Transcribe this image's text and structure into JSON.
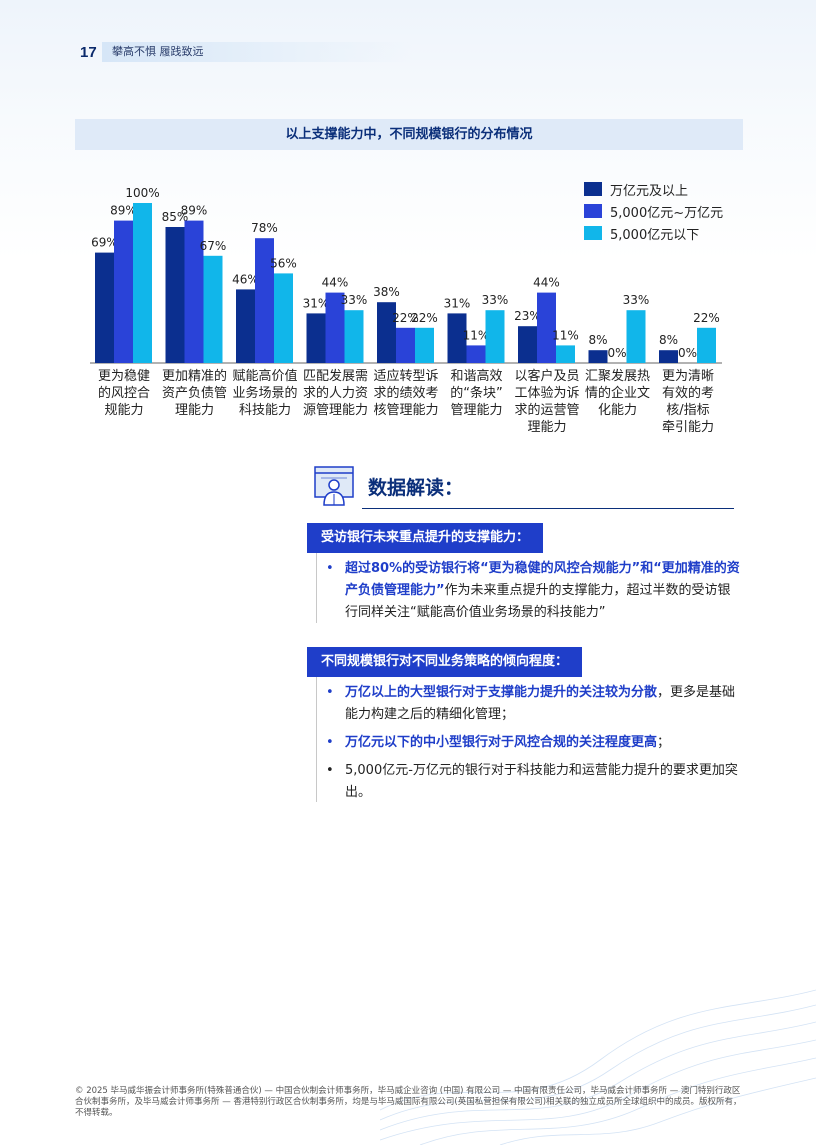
{
  "header": {
    "page_number": "17",
    "tagline": "攀高不惧 履践致远"
  },
  "chart_data": {
    "type": "bar",
    "title": "以上支撑能力中，不同规模银行的分布情况",
    "categories": [
      "更为稳健的风控合规能力",
      "更加精准的资产负债管理能力",
      "赋能高价值业务场景的科技能力",
      "匹配发展需求的人力资源管理能力",
      "适应转型诉求的绩效考核管理能力",
      "和谐高效的“条块”管理能力",
      "以客户及员工体验为诉求的运营管理能力",
      "汇聚发展热情的企业文化能力",
      "更为清晰有效的考核/指标牵引能力"
    ],
    "category_lines": [
      [
        "更为稳健",
        "的风控合",
        "规能力"
      ],
      [
        "更加精准的",
        "资产负债管",
        "理能力"
      ],
      [
        "赋能高价值",
        "业务场景的",
        "科技能力"
      ],
      [
        "匹配发展需",
        "求的人力资",
        "源管理能力"
      ],
      [
        "适应转型诉",
        "求的绩效考",
        "核管理能力"
      ],
      [
        "和谐高效",
        "的“条块”",
        "管理能力"
      ],
      [
        "以客户及员",
        "工体验为诉",
        "求的运营管",
        "理能力"
      ],
      [
        "汇聚发展热",
        "情的企业文",
        "化能力"
      ],
      [
        "更为清晰",
        "有效的考",
        "核/指标",
        "牵引能力"
      ]
    ],
    "series": [
      {
        "name": "万亿元及以上",
        "color": "#0b2f8f",
        "values": [
          69,
          85,
          46,
          31,
          38,
          31,
          23,
          8,
          8
        ],
        "labels": [
          "69%",
          "85%",
          "46%",
          "31%",
          "38%",
          "31%",
          "23%",
          "8%",
          "8%"
        ]
      },
      {
        "name": "5,000亿元~万亿元",
        "color": "#2a43d8",
        "values": [
          89,
          89,
          78,
          44,
          22,
          11,
          44,
          0,
          0
        ],
        "labels": [
          "89%",
          "89%",
          "78%",
          "44%",
          "22%",
          "11%",
          "44%",
          "0%",
          "0%"
        ]
      },
      {
        "name": "5,000亿元以下",
        "color": "#11b6ea",
        "values": [
          100,
          67,
          56,
          33,
          22,
          33,
          11,
          33,
          22
        ],
        "labels": [
          "100%",
          "67%",
          "56%",
          "33%",
          "22%",
          "33%",
          "11%",
          "33%",
          "22%"
        ]
      }
    ],
    "ylim": [
      0,
      100
    ],
    "legend_position": "top-right",
    "grid": false
  },
  "insight": {
    "title": "数据解读：",
    "sections": [
      {
        "heading": "受访银行未来重点提升的支撑能力：",
        "bullets": [
          {
            "highlight": true,
            "parts": [
              {
                "text": "超过80%的受访银行将“更为稳健的风控合规能力”和“更加精准的资产负债管理能力”",
                "hl": true
              },
              {
                "text": "作为未来重点提升的支撑能力，超过半数的受访银行同样关注“赋能高价值业务场景的科技能力”",
                "hl": false
              }
            ]
          }
        ]
      },
      {
        "heading": "不同规模银行对不同业务策略的倾向程度：",
        "bullets": [
          {
            "highlight": true,
            "parts": [
              {
                "text": "万亿以上的大型银行对于支撑能力提升的关注较为分散",
                "hl": true
              },
              {
                "text": "，更多是基础能力构建之后的精细化管理；",
                "hl": false
              }
            ]
          },
          {
            "highlight": true,
            "parts": [
              {
                "text": "万亿元以下的中小型银行对于风控合规的关注程度更高",
                "hl": true
              },
              {
                "text": "；",
                "hl": false
              }
            ]
          },
          {
            "highlight": false,
            "parts": [
              {
                "text": "5,000亿元-万亿元的银行对于科技能力和运营能力提升的要求更加突出。",
                "hl": false
              }
            ]
          }
        ]
      }
    ]
  },
  "footer": {
    "text": "© 2025 毕马威华振会计师事务所(特殊普通合伙) — 中国合伙制会计师事务所，毕马威企业咨询 (中国) 有限公司 — 中国有限责任公司，毕马威会计师事务所 — 澳门特别行政区合伙制事务所，及毕马威会计师事务所 — 香港特别行政区合伙制事务所，均是与毕马威国际有限公司(英国私营担保有限公司)相关联的独立成员所全球组织中的成员。版权所有，不得转载。"
  }
}
